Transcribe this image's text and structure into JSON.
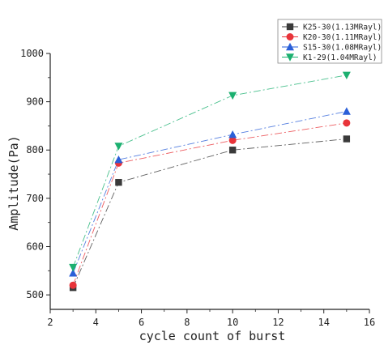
{
  "chart_data": {
    "type": "line",
    "title": "",
    "xlabel": "cycle count of burst",
    "ylabel": "Amplitude(Pa)",
    "xlim": [
      2,
      16
    ],
    "ylim": [
      470,
      1000
    ],
    "x_ticks": [
      2,
      4,
      6,
      8,
      10,
      12,
      14,
      16
    ],
    "y_ticks": [
      500,
      600,
      700,
      800,
      900,
      1000
    ],
    "grid": false,
    "legend_position": "top-right",
    "x": [
      3,
      5,
      10,
      15
    ],
    "series": [
      {
        "name": "K25-30(1.13MRayl)",
        "values": [
          515,
          733,
          800,
          823
        ],
        "color": "#3a3a3a",
        "marker": "square"
      },
      {
        "name": "K20-30(1.11MRayl)",
        "values": [
          520,
          773,
          820,
          856
        ],
        "color": "#e8343a",
        "marker": "circle"
      },
      {
        "name": "S15-30(1.08MRayl)",
        "values": [
          545,
          780,
          832,
          880
        ],
        "color": "#2a5fd8",
        "marker": "triangle-up"
      },
      {
        "name": "K1-29(1.04MRayl)",
        "values": [
          557,
          808,
          913,
          955
        ],
        "color": "#1cb070",
        "marker": "triangle-down"
      }
    ]
  }
}
